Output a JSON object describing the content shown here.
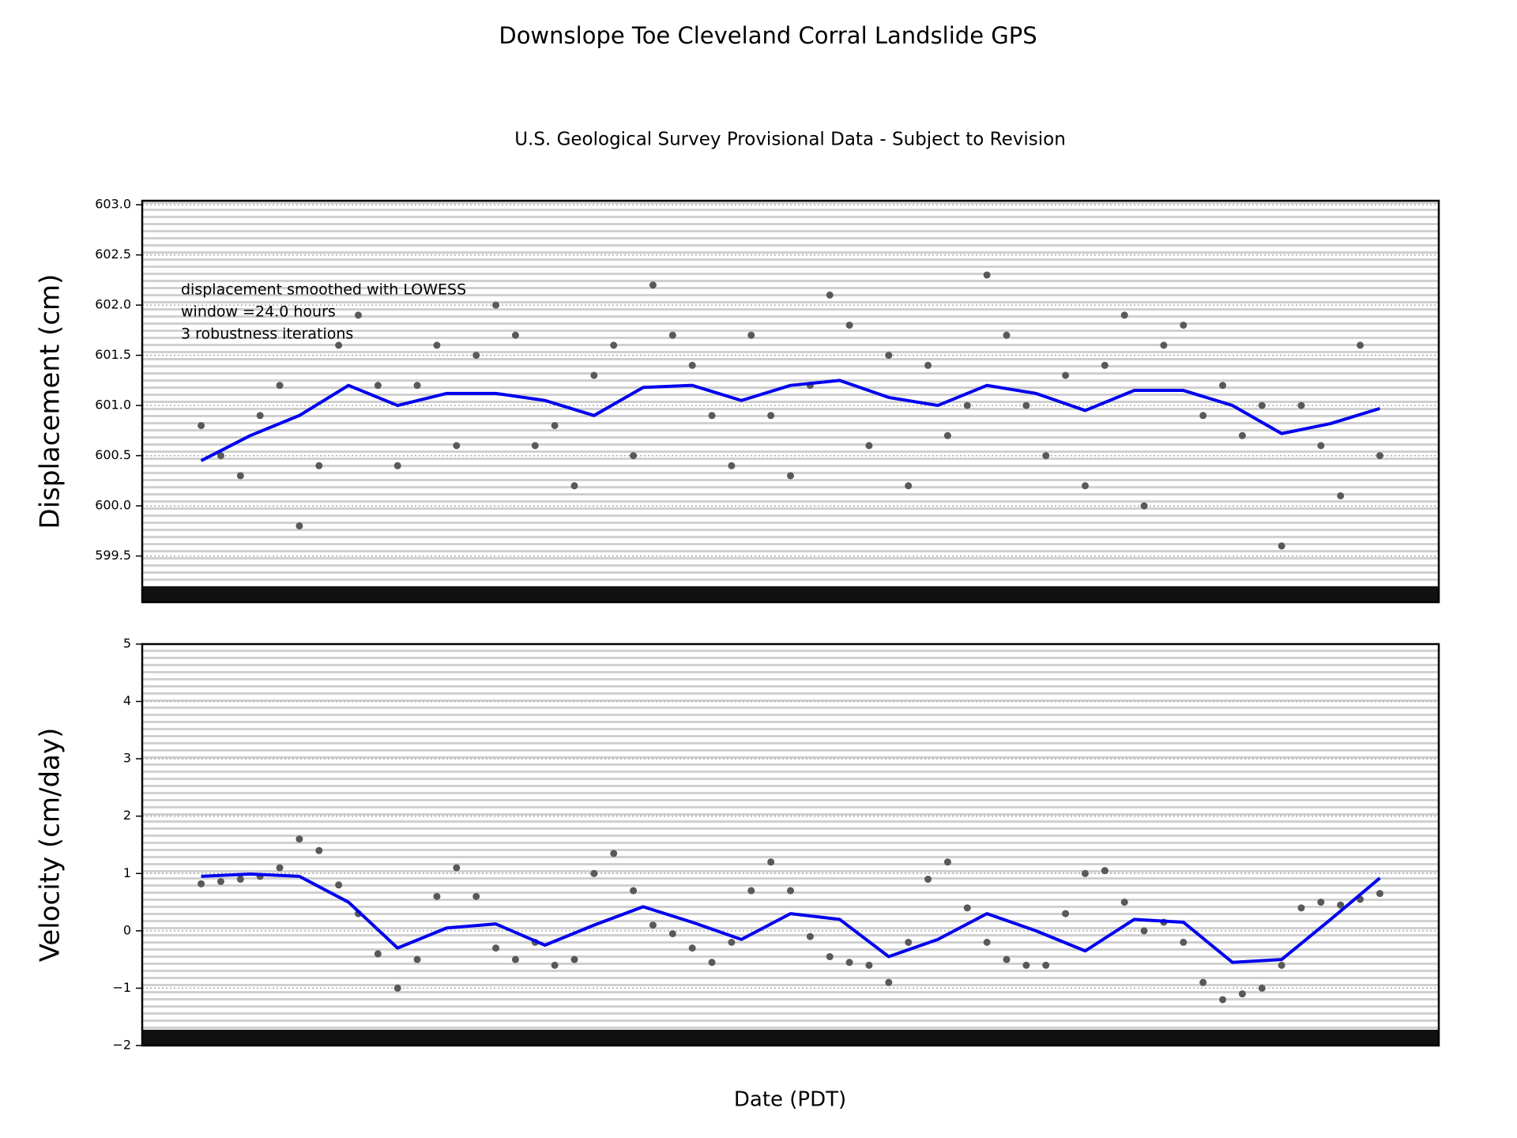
{
  "chart_data": [
    {
      "type": "scatter",
      "title": "Downslope Toe Cleveland Corral Landslide GPS",
      "subtitle": "U.S. Geological Survey Provisional Data - Subject to Revision",
      "ylabel": "Displacement (cm)",
      "annotations": [
        "displacement smoothed with LOWESS",
        "window =24.0 hours",
        "3 robustness iterations"
      ],
      "xlim": [
        -6,
        126
      ],
      "ylim": [
        599.04,
        603.04
      ],
      "yticks": [
        599.5,
        {
          "value": 600,
          "label": "600.0"
        },
        600.5,
        {
          "value": 601,
          "label": "601.0"
        },
        601.5,
        {
          "value": 602,
          "label": "602.0"
        },
        602.5,
        {
          "value": 603,
          "label": "603.0"
        }
      ],
      "grid": true,
      "series": [
        {
          "color": "#595959",
          "marker": "dot",
          "x": [
            0,
            2,
            4,
            6,
            8,
            10,
            12,
            14,
            16,
            18,
            20,
            22,
            24,
            26,
            28,
            30,
            32,
            34,
            36,
            38,
            40,
            42,
            44,
            46,
            48,
            50,
            52,
            54,
            56,
            58,
            60,
            62,
            64,
            66,
            68,
            70,
            72,
            74,
            76,
            78,
            80,
            82,
            84,
            86,
            88,
            90,
            92,
            94,
            96,
            98,
            100,
            102,
            104,
            106,
            108,
            110,
            112,
            114,
            116,
            118,
            120
          ],
          "values": [
            600.8,
            600.5,
            600.3,
            600.9,
            601.2,
            599.8,
            600.4,
            601.6,
            601.9,
            601.2,
            600.4,
            601.2,
            601.6,
            600.6,
            601.5,
            602.0,
            601.7,
            600.6,
            600.8,
            600.2,
            601.3,
            601.6,
            600.5,
            602.2,
            601.7,
            601.4,
            600.9,
            600.4,
            601.7,
            600.9,
            600.3,
            601.2,
            602.1,
            601.8,
            600.6,
            601.5,
            600.2,
            601.4,
            600.7,
            601.0,
            602.3,
            601.7,
            601.0,
            600.5,
            601.3,
            600.2,
            601.4,
            601.9,
            600.0,
            601.6,
            601.8,
            600.9,
            601.2,
            600.7,
            601.0,
            599.6,
            601.0,
            600.6,
            600.1,
            601.6,
            600.5
          ]
        },
        {
          "color": "#0000ee",
          "marker": "line",
          "x": [
            0,
            5,
            10,
            15,
            20,
            25,
            30,
            35,
            40,
            45,
            50,
            55,
            60,
            65,
            70,
            75,
            80,
            85,
            90,
            95,
            100,
            105,
            110,
            115,
            120
          ],
          "values": [
            600.45,
            600.7,
            600.9,
            601.2,
            601.0,
            601.12,
            601.12,
            601.05,
            600.9,
            601.18,
            601.2,
            601.05,
            601.2,
            601.25,
            601.08,
            601.0,
            601.2,
            601.12,
            600.95,
            601.15,
            601.15,
            601.0,
            600.72,
            600.82,
            600.97
          ]
        }
      ]
    },
    {
      "type": "scatter",
      "ylabel": "Velocity (cm/day)",
      "xlabel": "Date (PDT)",
      "xlim": [
        -6,
        126
      ],
      "ylim": [
        -2,
        5
      ],
      "yticks": [
        {
          "value": -2,
          "label": "−2"
        },
        {
          "value": -1,
          "label": "−1"
        },
        0,
        1,
        2,
        3,
        4,
        5
      ],
      "grid": true,
      "series": [
        {
          "color": "#595959",
          "marker": "dot",
          "x": [
            0,
            2,
            4,
            6,
            8,
            10,
            12,
            14,
            16,
            18,
            20,
            22,
            24,
            26,
            28,
            30,
            32,
            34,
            36,
            38,
            40,
            42,
            44,
            46,
            48,
            50,
            52,
            54,
            56,
            58,
            60,
            62,
            64,
            66,
            68,
            70,
            72,
            74,
            76,
            78,
            80,
            82,
            84,
            86,
            88,
            90,
            92,
            94,
            96,
            98,
            100,
            102,
            104,
            106,
            108,
            110,
            112,
            114,
            116,
            118,
            120
          ],
          "values": [
            0.82,
            0.86,
            0.9,
            0.95,
            1.1,
            1.6,
            1.4,
            0.8,
            0.3,
            -0.4,
            -1.0,
            -0.5,
            0.6,
            1.1,
            0.6,
            -0.3,
            -0.5,
            -0.2,
            -0.6,
            -0.5,
            1.0,
            1.35,
            0.7,
            0.1,
            -0.05,
            -0.3,
            -0.55,
            -0.2,
            0.7,
            1.2,
            0.7,
            -0.1,
            -0.45,
            -0.55,
            -0.6,
            -0.9,
            -0.2,
            0.9,
            1.2,
            0.4,
            -0.2,
            -0.5,
            -0.6,
            -0.6,
            0.3,
            1.0,
            1.05,
            0.5,
            0.0,
            0.15,
            -0.2,
            -0.9,
            -1.2,
            -1.1,
            -1.0,
            -0.6,
            0.4,
            0.5,
            0.45,
            0.55,
            0.65
          ]
        },
        {
          "color": "#0000ee",
          "marker": "line",
          "x": [
            0,
            5,
            10,
            15,
            20,
            25,
            30,
            35,
            40,
            45,
            50,
            55,
            60,
            65,
            70,
            75,
            80,
            85,
            90,
            95,
            100,
            105,
            110,
            115,
            120
          ],
          "values": [
            0.95,
            0.99,
            0.95,
            0.5,
            -0.3,
            0.05,
            0.12,
            -0.25,
            0.1,
            0.42,
            0.15,
            -0.15,
            0.3,
            0.2,
            -0.45,
            -0.15,
            0.3,
            0.0,
            -0.35,
            0.2,
            0.15,
            -0.55,
            -0.5,
            0.2,
            0.92
          ]
        }
      ]
    }
  ]
}
